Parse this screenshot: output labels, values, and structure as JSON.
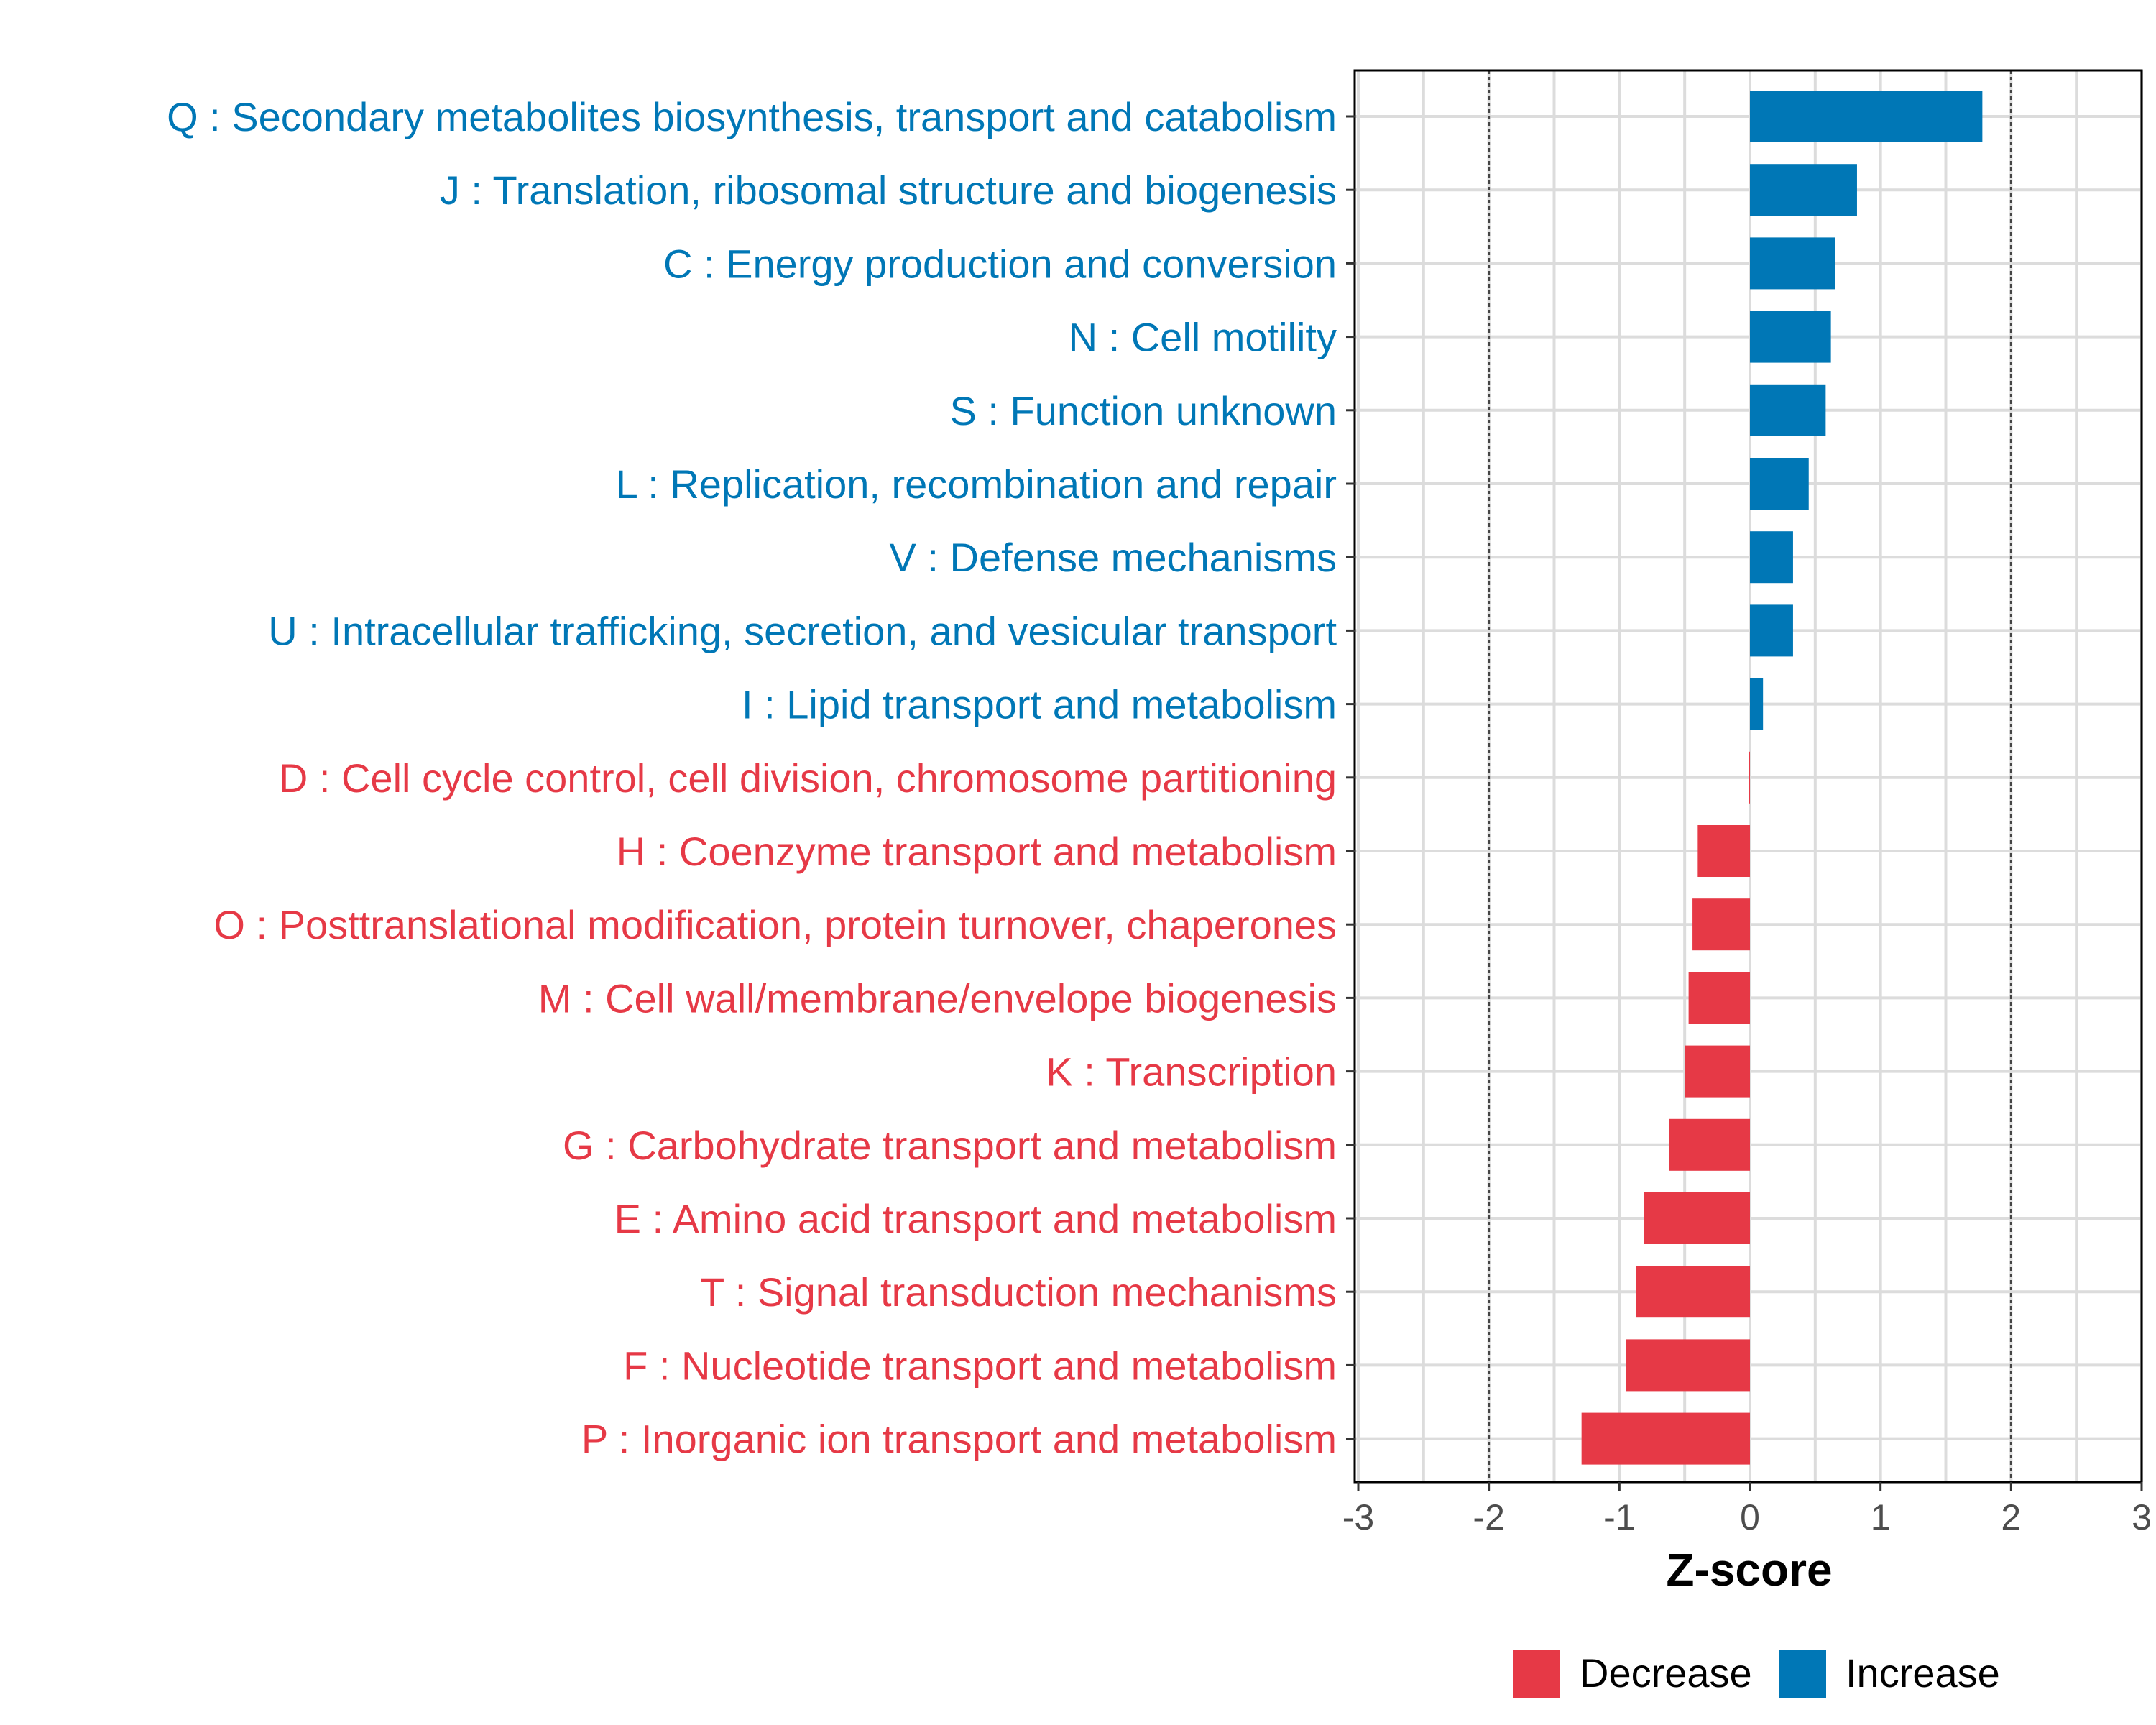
{
  "chart_data": {
    "type": "bar",
    "orientation": "horizontal",
    "xlabel": "Z-score",
    "ylabel": "",
    "xlim": [
      -3,
      3
    ],
    "xticks": [
      -3,
      -2,
      -1,
      0,
      1,
      2,
      3
    ],
    "xtick_labels": [
      "-3",
      "-2",
      "-1",
      "0",
      "1",
      "2",
      "3"
    ],
    "reference_lines": [
      -2,
      2
    ],
    "grid": true,
    "legend_position": "bottom-right",
    "colors": {
      "Decrease": "#E63946",
      "Increase": "#0077B6"
    },
    "legend": [
      {
        "label": "Decrease",
        "color": "#E63946"
      },
      {
        "label": "Increase",
        "color": "#0077B6"
      }
    ],
    "categories": [
      {
        "label": "Q : Secondary metabolites biosynthesis, transport and catabolism",
        "value": 1.78,
        "group": "Increase"
      },
      {
        "label": "J : Translation, ribosomal structure and biogenesis",
        "value": 0.82,
        "group": "Increase"
      },
      {
        "label": "C : Energy production and conversion",
        "value": 0.65,
        "group": "Increase"
      },
      {
        "label": "N : Cell motility",
        "value": 0.62,
        "group": "Increase"
      },
      {
        "label": "S : Function unknown",
        "value": 0.58,
        "group": "Increase"
      },
      {
        "label": "L : Replication, recombination and repair",
        "value": 0.45,
        "group": "Increase"
      },
      {
        "label": "V : Defense mechanisms",
        "value": 0.33,
        "group": "Increase"
      },
      {
        "label": "U : Intracellular trafficking, secretion, and vesicular transport",
        "value": 0.33,
        "group": "Increase"
      },
      {
        "label": "I : Lipid transport and metabolism",
        "value": 0.1,
        "group": "Increase"
      },
      {
        "label": "D : Cell cycle control, cell division, chromosome partitioning",
        "value": -0.01,
        "group": "Decrease"
      },
      {
        "label": "H : Coenzyme transport and metabolism",
        "value": -0.4,
        "group": "Decrease"
      },
      {
        "label": "O : Posttranslational modification, protein turnover, chaperones",
        "value": -0.44,
        "group": "Decrease"
      },
      {
        "label": "M : Cell wall/membrane/envelope biogenesis",
        "value": -0.47,
        "group": "Decrease"
      },
      {
        "label": "K : Transcription",
        "value": -0.5,
        "group": "Decrease"
      },
      {
        "label": "G : Carbohydrate transport and metabolism",
        "value": -0.62,
        "group": "Decrease"
      },
      {
        "label": "E : Amino acid transport and metabolism",
        "value": -0.81,
        "group": "Decrease"
      },
      {
        "label": "T : Signal transduction mechanisms",
        "value": -0.87,
        "group": "Decrease"
      },
      {
        "label": "F : Nucleotide transport and metabolism",
        "value": -0.95,
        "group": "Decrease"
      },
      {
        "label": "P : Inorganic ion transport and metabolism",
        "value": -1.29,
        "group": "Decrease"
      }
    ]
  }
}
